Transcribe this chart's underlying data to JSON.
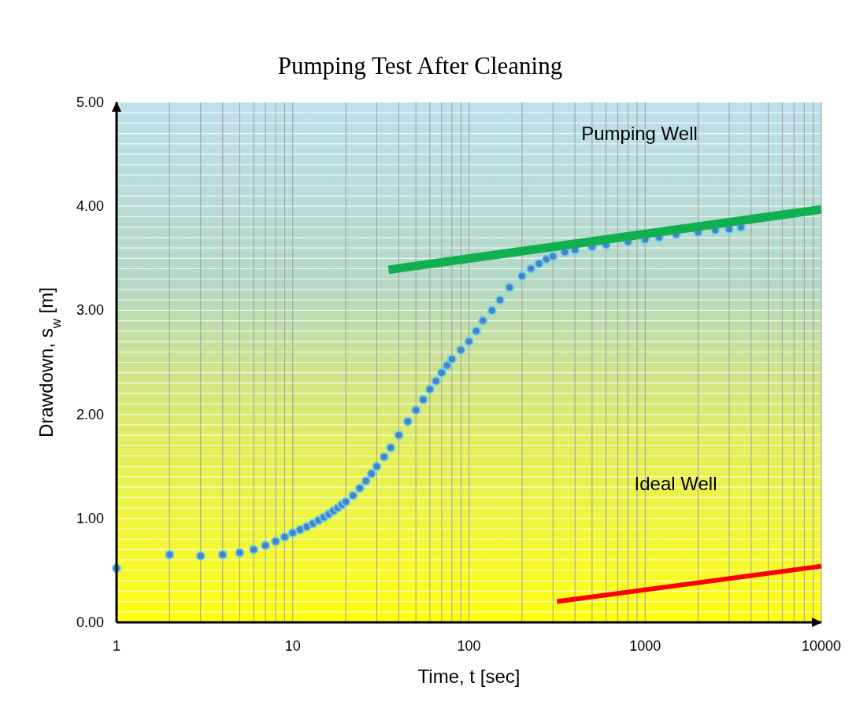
{
  "chart_data": {
    "type": "scatter",
    "title": "Pumping Test After Cleaning",
    "xlabel": "Time, t [sec]",
    "ylabel": "Drawdown, s$_{w}$ [m]",
    "log": "x",
    "grid": true,
    "xlim": [
      1,
      10000
    ],
    "xticks": [
      1,
      10,
      100,
      1000,
      10000
    ],
    "ylim": [
      0,
      5
    ],
    "yticks": [
      {
        "value": 0,
        "label": "0.00"
      },
      {
        "value": 1,
        "label": "1.00"
      },
      {
        "value": 2,
        "label": "2.00"
      },
      {
        "value": 3,
        "label": "3.00"
      },
      {
        "value": 4,
        "label": "4.00"
      },
      {
        "value": 5,
        "label": "5.00"
      }
    ],
    "annotations": [
      "Pumping Well",
      "Ideal Well"
    ],
    "series": [
      {
        "marker": "circle",
        "color": "#4f7fc6",
        "x": [
          1,
          2,
          3,
          4,
          5,
          6,
          7,
          8,
          9,
          10,
          11,
          12,
          13,
          14,
          15,
          16,
          17,
          18,
          19,
          20,
          22,
          24,
          26,
          28,
          30,
          33,
          36,
          40,
          45,
          50,
          55,
          60,
          65,
          70,
          75,
          80,
          90,
          100,
          110,
          120,
          135,
          150,
          170,
          200,
          225,
          250,
          275,
          300,
          350,
          400,
          500,
          600,
          800,
          1000,
          1200,
          1500,
          2000,
          2500,
          3000,
          3500
        ],
        "values": [
          0.52,
          0.65,
          0.64,
          0.65,
          0.67,
          0.7,
          0.74,
          0.78,
          0.82,
          0.86,
          0.89,
          0.92,
          0.95,
          0.98,
          1.01,
          1.04,
          1.07,
          1.1,
          1.13,
          1.16,
          1.22,
          1.29,
          1.36,
          1.43,
          1.5,
          1.59,
          1.68,
          1.8,
          1.93,
          2.04,
          2.14,
          2.24,
          2.32,
          2.4,
          2.47,
          2.53,
          2.62,
          2.7,
          2.8,
          2.9,
          3.0,
          3.1,
          3.22,
          3.33,
          3.4,
          3.45,
          3.49,
          3.52,
          3.56,
          3.58,
          3.61,
          3.63,
          3.66,
          3.68,
          3.7,
          3.73,
          3.75,
          3.77,
          3.78,
          3.8
        ]
      },
      {
        "type": "line",
        "color": "#10b050",
        "x": [
          35,
          10000
        ],
        "values": [
          3.39,
          3.97
        ]
      },
      {
        "type": "line",
        "color": "#ff0000",
        "x": [
          316,
          10000
        ],
        "values": [
          0.2,
          0.54
        ]
      }
    ]
  }
}
